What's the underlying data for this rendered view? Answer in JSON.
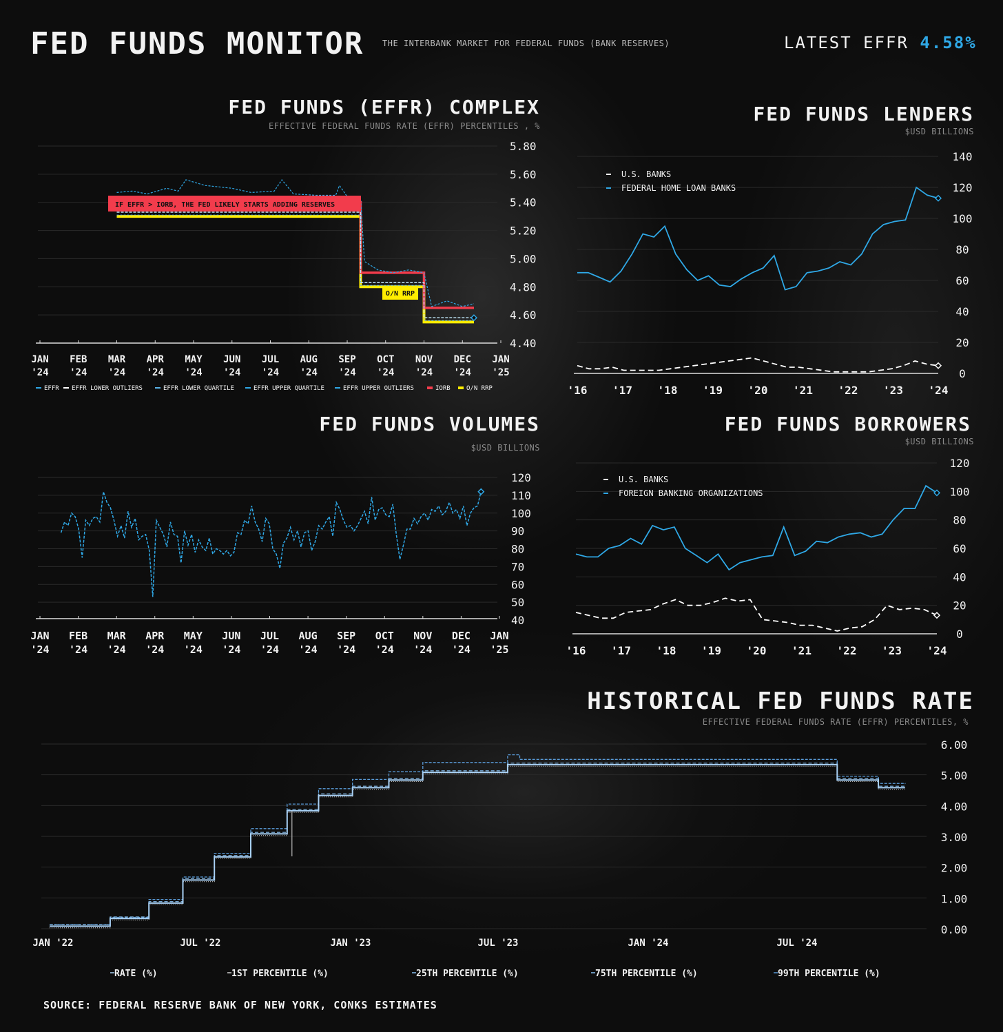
{
  "header": {
    "title": "FED FUNDS MONITOR",
    "subtitle": "THE INTERBANK MARKET FOR FEDERAL FUNDS (BANK RESERVES)",
    "latest_label": "LATEST EFFR",
    "latest_value": "4.58%"
  },
  "colors": {
    "accent": "#2fa8e6",
    "iorb": "#f23c4c",
    "rrp": "#ffec00",
    "text": "#f2f2f2",
    "muted": "#8a8a8a"
  },
  "source": "SOURCE: FEDERAL RESERVE BANK OF NEW YORK, CONKS ESTIMATES",
  "chart_data": [
    {
      "id": "complex",
      "type": "line",
      "title": "FED FUNDS (EFFR) COMPLEX",
      "subtitle": "EFFECTIVE FEDERAL FUNDS RATE (EFFR) PERCENTILES , %",
      "ylim": [
        4.4,
        5.8
      ],
      "yticks": [
        "5.80",
        "5.60",
        "5.40",
        "5.20",
        "5.00",
        "4.80",
        "4.60",
        "4.40"
      ],
      "xticks": [
        [
          "JAN",
          "'24"
        ],
        [
          "FEB",
          "'24"
        ],
        [
          "MAR",
          "'24"
        ],
        [
          "APR",
          "'24"
        ],
        [
          "MAY",
          "'24"
        ],
        [
          "JUN",
          "'24"
        ],
        [
          "JUL",
          "'24"
        ],
        [
          "AUG",
          "'24"
        ],
        [
          "SEP",
          "'24"
        ],
        [
          "OCT",
          "'24"
        ],
        [
          "NOV",
          "'24"
        ],
        [
          "DEC",
          "'24"
        ],
        [
          "JAN",
          "'25"
        ]
      ],
      "legend": [
        "EFFR",
        "EFFR LOWER OUTLIERS",
        "EFFR LOWER QUARTILE",
        "EFFR UPPER QUARTILE",
        "EFFR UPPER OUTLIERS",
        "IORB",
        "O/N RRP"
      ],
      "annotations": [
        "IF EFFR > IORB, THE FED LIKELY STARTS ADDING RESERVES",
        "O/N RRP"
      ],
      "iorb": [
        [
          2.0,
          5.4
        ],
        [
          8.35,
          5.4
        ],
        [
          8.35,
          4.9
        ],
        [
          10.0,
          4.9
        ],
        [
          10.0,
          4.65
        ],
        [
          11.3,
          4.65
        ]
      ],
      "rrp": [
        [
          2.0,
          5.3
        ],
        [
          8.35,
          5.3
        ],
        [
          8.35,
          4.8
        ],
        [
          10.0,
          4.8
        ],
        [
          10.0,
          4.55
        ],
        [
          11.3,
          4.55
        ]
      ],
      "effr": [
        [
          2.0,
          5.33
        ],
        [
          8.35,
          5.33
        ],
        [
          8.35,
          4.83
        ],
        [
          10.0,
          4.83
        ],
        [
          10.0,
          4.58
        ],
        [
          11.3,
          4.58
        ]
      ],
      "upper_outliers": [
        [
          2.0,
          5.47
        ],
        [
          2.4,
          5.48
        ],
        [
          2.8,
          5.46
        ],
        [
          3.3,
          5.5
        ],
        [
          3.6,
          5.48
        ],
        [
          3.8,
          5.56
        ],
        [
          4.3,
          5.52
        ],
        [
          5.0,
          5.5
        ],
        [
          5.5,
          5.47
        ],
        [
          6.1,
          5.48
        ],
        [
          6.3,
          5.56
        ],
        [
          6.6,
          5.46
        ],
        [
          7.2,
          5.45
        ],
        [
          7.7,
          5.45
        ],
        [
          7.8,
          5.52
        ],
        [
          8.0,
          5.44
        ],
        [
          8.35,
          5.42
        ],
        [
          8.45,
          4.98
        ],
        [
          8.8,
          4.92
        ],
        [
          9.2,
          4.9
        ],
        [
          9.6,
          4.92
        ],
        [
          10.0,
          4.9
        ],
        [
          10.2,
          4.66
        ],
        [
          10.6,
          4.7
        ],
        [
          11.0,
          4.66
        ],
        [
          11.3,
          4.68
        ]
      ],
      "lower_outliers": [
        [
          2.0,
          5.31
        ],
        [
          8.35,
          5.31
        ],
        [
          8.35,
          4.81
        ],
        [
          10.0,
          4.81
        ],
        [
          10.0,
          4.56
        ],
        [
          11.3,
          4.56
        ]
      ],
      "latest_point": [
        11.3,
        4.58
      ]
    },
    {
      "id": "lenders",
      "type": "line",
      "title": "FED FUNDS LENDERS",
      "subtitle": "$USD BILLIONS",
      "ylim": [
        0,
        140
      ],
      "yticks": [
        "140",
        "120",
        "100",
        "80",
        "60",
        "40",
        "20",
        "0"
      ],
      "xticks": [
        "'16",
        "'17",
        "'18",
        "'19",
        "'20",
        "'21",
        "'22",
        "'23",
        "'24"
      ],
      "series": [
        {
          "name": "U.S. BANKS",
          "style": "dashed",
          "color": "#ffffff",
          "values": [
            5,
            3,
            3,
            4,
            2,
            2,
            2,
            2,
            3,
            4,
            5,
            6,
            7,
            8,
            9,
            10,
            8,
            6,
            4,
            4,
            3,
            2,
            1,
            1,
            1,
            1,
            2,
            3,
            5,
            8,
            6,
            5
          ]
        },
        {
          "name": "FEDERAL HOME LOAN BANKS",
          "style": "solid",
          "color": "#2fa8e6",
          "values": [
            65,
            65,
            62,
            59,
            66,
            77,
            90,
            88,
            95,
            77,
            67,
            60,
            63,
            57,
            56,
            61,
            65,
            68,
            76,
            54,
            56,
            65,
            66,
            68,
            72,
            70,
            77,
            90,
            96,
            98,
            99,
            120,
            115,
            113
          ]
        }
      ]
    },
    {
      "id": "volumes",
      "type": "line",
      "title": "FED FUNDS VOLUMES",
      "subtitle": "$USD BILLIONS",
      "ylim": [
        40,
        120
      ],
      "yticks": [
        "120",
        "110",
        "100",
        "90",
        "80",
        "70",
        "60",
        "50",
        "40"
      ],
      "xticks": [
        [
          "JAN",
          "'24"
        ],
        [
          "FEB",
          "'24"
        ],
        [
          "MAR",
          "'24"
        ],
        [
          "APR",
          "'24"
        ],
        [
          "MAY",
          "'24"
        ],
        [
          "JUN",
          "'24"
        ],
        [
          "JUL",
          "'24"
        ],
        [
          "AUG",
          "'24"
        ],
        [
          "SEP",
          "'24"
        ],
        [
          "OCT",
          "'24"
        ],
        [
          "NOV",
          "'24"
        ],
        [
          "DEC",
          "'24"
        ],
        [
          "JAN",
          "'25"
        ]
      ],
      "series": [
        {
          "name": "",
          "style": "dashed",
          "color": "#2fa8e6",
          "values": [
            89,
            95,
            93,
            100,
            98,
            91,
            75,
            96,
            93,
            97,
            98,
            95,
            112,
            106,
            103,
            96,
            87,
            93,
            86,
            101,
            92,
            97,
            85,
            87,
            88,
            79,
            53,
            96,
            92,
            88,
            81,
            95,
            88,
            87,
            72,
            90,
            82,
            88,
            78,
            85,
            81,
            79,
            86,
            77,
            80,
            79,
            77,
            79,
            76,
            78,
            89,
            88,
            96,
            94,
            104,
            95,
            91,
            84,
            97,
            94,
            80,
            77,
            69,
            83,
            86,
            92,
            85,
            90,
            81,
            89,
            90,
            79,
            84,
            93,
            91,
            95,
            98,
            87,
            106,
            102,
            96,
            92,
            93,
            90,
            93,
            97,
            101,
            94,
            109,
            96,
            102,
            103,
            99,
            98,
            105,
            88,
            74,
            82,
            91,
            91,
            97,
            94,
            98,
            100,
            96,
            102,
            101,
            104,
            99,
            101,
            106,
            100,
            102,
            97,
            104,
            93,
            100,
            103,
            104,
            112
          ]
        }
      ],
      "latest_point": 112
    },
    {
      "id": "borrowers",
      "type": "line",
      "title": "FED FUNDS BORROWERS",
      "subtitle": "$USD BILLIONS",
      "ylim": [
        0,
        120
      ],
      "yticks": [
        "120",
        "100",
        "80",
        "60",
        "40",
        "20",
        "0"
      ],
      "xticks": [
        "'16",
        "'17",
        "'18",
        "'19",
        "'20",
        "'21",
        "'22",
        "'23",
        "'24"
      ],
      "series": [
        {
          "name": "U.S. BANKS",
          "style": "dashed",
          "color": "#ffffff",
          "values": [
            15,
            13,
            11,
            11,
            15,
            16,
            17,
            21,
            24,
            20,
            20,
            22,
            25,
            23,
            24,
            10,
            9,
            8,
            6,
            6,
            4,
            2,
            4,
            5,
            10,
            20,
            17,
            18,
            17,
            13
          ]
        },
        {
          "name": "FOREIGN BANKING ORGANIZATIONS",
          "style": "solid",
          "color": "#2fa8e6",
          "values": [
            56,
            54,
            54,
            60,
            62,
            67,
            63,
            76,
            73,
            75,
            60,
            55,
            50,
            56,
            45,
            50,
            52,
            54,
            55,
            75,
            55,
            58,
            65,
            64,
            68,
            70,
            71,
            68,
            70,
            80,
            88,
            88,
            104,
            99
          ]
        }
      ]
    },
    {
      "id": "historical",
      "type": "line",
      "title": "HISTORICAL FED FUNDS RATE",
      "subtitle": "EFFECTIVE FEDERAL FUNDS RATE (EFFR) PERCENTILES, %",
      "ylim": [
        0,
        6
      ],
      "yticks": [
        "6.00",
        "5.00",
        "4.00",
        "3.00",
        "2.00",
        "1.00",
        "0.00"
      ],
      "xticks": [
        "JAN '22",
        "JUL '22",
        "JAN '23",
        "JUL '23",
        "JAN '24",
        "JUL '24"
      ],
      "legend": [
        "RATE (%)",
        "1ST PERCENTILE (%)",
        "25TH PERCENTILE (%)",
        "75TH PERCENTILE (%)",
        "99TH PERCENTILE (%)"
      ],
      "rate_steps": [
        [
          0,
          0.08
        ],
        [
          2.5,
          0.33
        ],
        [
          4.1,
          0.83
        ],
        [
          5.5,
          1.58
        ],
        [
          6.8,
          2.33
        ],
        [
          8.3,
          3.08
        ],
        [
          9.8,
          3.83
        ],
        [
          11.1,
          4.33
        ],
        [
          12.5,
          4.58
        ],
        [
          14.0,
          4.83
        ],
        [
          15.4,
          5.08
        ],
        [
          18.9,
          5.33
        ],
        [
          32.5,
          4.83
        ],
        [
          34.2,
          4.58
        ],
        [
          35.3,
          4.58
        ]
      ],
      "p99_steps": [
        [
          0,
          0.13
        ],
        [
          2.5,
          0.37
        ],
        [
          4.1,
          0.95
        ],
        [
          5.5,
          1.68
        ],
        [
          6.8,
          2.45
        ],
        [
          8.3,
          3.25
        ],
        [
          9.8,
          4.05
        ],
        [
          11.1,
          4.55
        ],
        [
          12.5,
          4.85
        ],
        [
          14.0,
          5.1
        ],
        [
          15.4,
          5.4
        ],
        [
          18.9,
          5.65
        ],
        [
          19.4,
          5.5
        ],
        [
          32.5,
          4.95
        ],
        [
          34.2,
          4.72
        ],
        [
          35.3,
          4.7
        ]
      ],
      "dip": {
        "x": 10.0,
        "low": 2.35
      }
    }
  ]
}
